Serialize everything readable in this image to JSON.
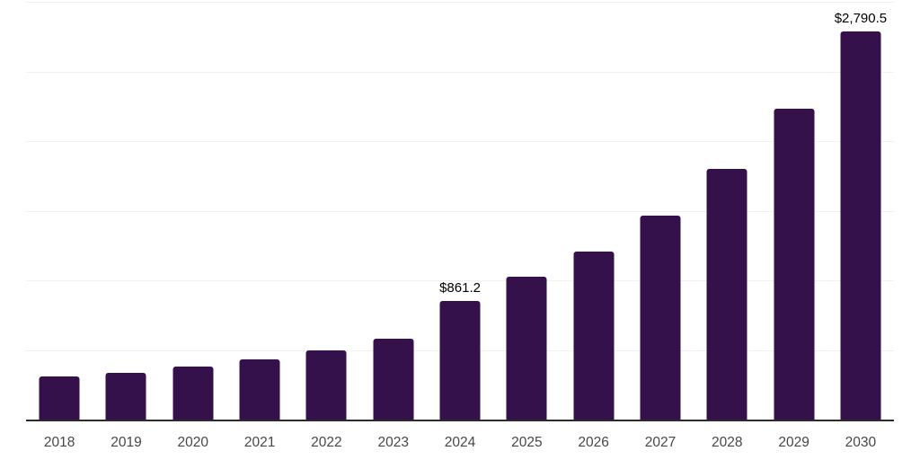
{
  "chart_data": {
    "type": "bar",
    "title": "",
    "xlabel": "",
    "ylabel": "",
    "categories": [
      "2018",
      "2019",
      "2020",
      "2021",
      "2022",
      "2023",
      "2024",
      "2025",
      "2026",
      "2027",
      "2028",
      "2029",
      "2030"
    ],
    "values": [
      315,
      340,
      390,
      440,
      505,
      590,
      861.2,
      1030,
      1215,
      1470,
      1805,
      2240,
      2790.5
    ],
    "bar_labels": [
      "",
      "",
      "",
      "",
      "",
      "",
      "$861.2",
      "",
      "",
      "",
      "",
      "",
      "$2,790.5"
    ],
    "ylim": [
      0,
      3000
    ],
    "gridline_interval": 500,
    "grid": true,
    "legend": "none",
    "colors": {
      "bar": "#35114b",
      "axis_line": "#2b2b2b",
      "tick_label": "#474747",
      "data_label": "#000000",
      "gridline": "#f1f1f1",
      "background": "#ffffff"
    }
  }
}
